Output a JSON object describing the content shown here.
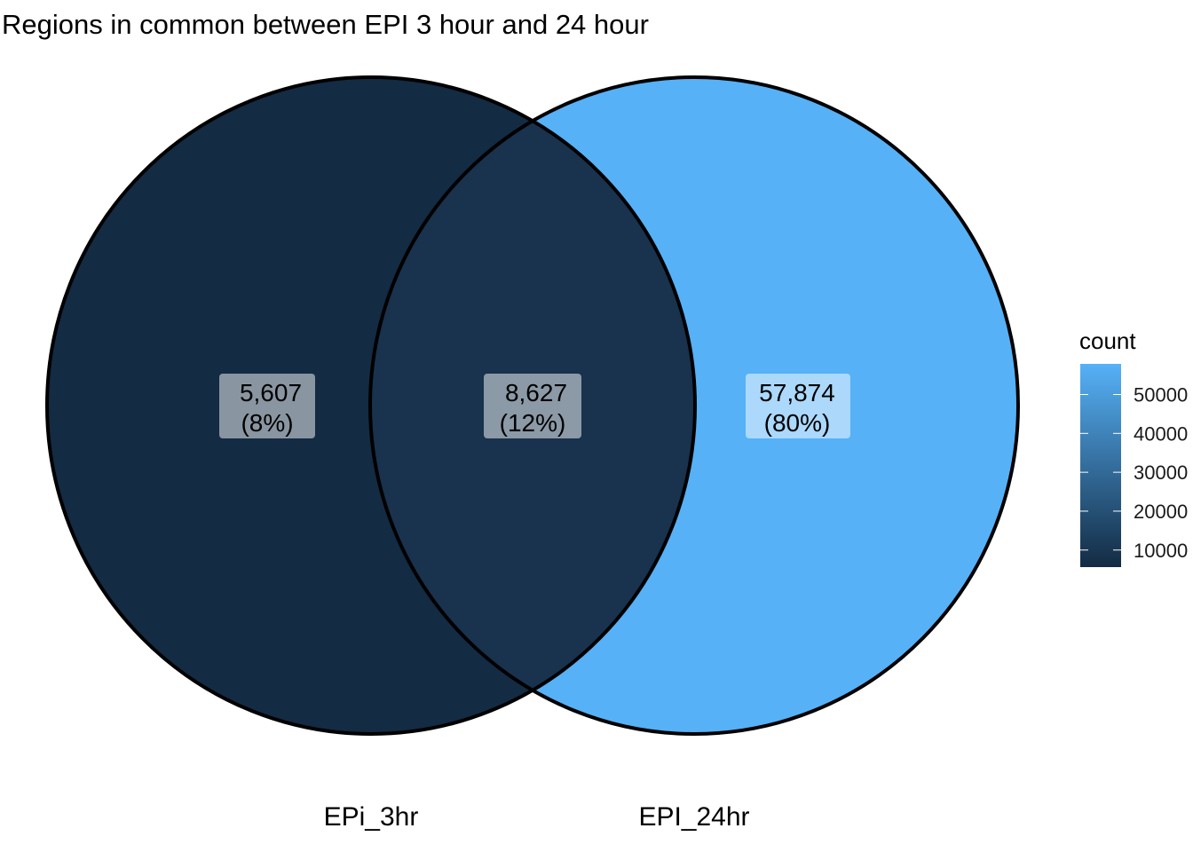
{
  "title": "Regions in common between EPI 3 hour and 24 hour",
  "sets": [
    {
      "id": "left",
      "name": "EPi_3hr"
    },
    {
      "id": "right",
      "name": "EPI_24hr"
    }
  ],
  "regions": [
    {
      "id": "left-only",
      "count": "5,607",
      "percent": "(8%)",
      "value": 5607,
      "color": "#132B43"
    },
    {
      "id": "overlap",
      "count": "8,627",
      "percent": "(12%)",
      "value": 8627,
      "color": "#19324D"
    },
    {
      "id": "right-only",
      "count": "57,874",
      "percent": "(80%)",
      "value": 57874,
      "color": "#56B1F7"
    }
  ],
  "legend": {
    "title": "count",
    "ticks": [
      "10000",
      "20000",
      "30000",
      "40000",
      "50000"
    ],
    "tick_values": [
      10000,
      20000,
      30000,
      40000,
      50000
    ],
    "min": 5607,
    "max": 57874,
    "low_color": "#132B43",
    "high_color": "#56B1F7"
  }
}
